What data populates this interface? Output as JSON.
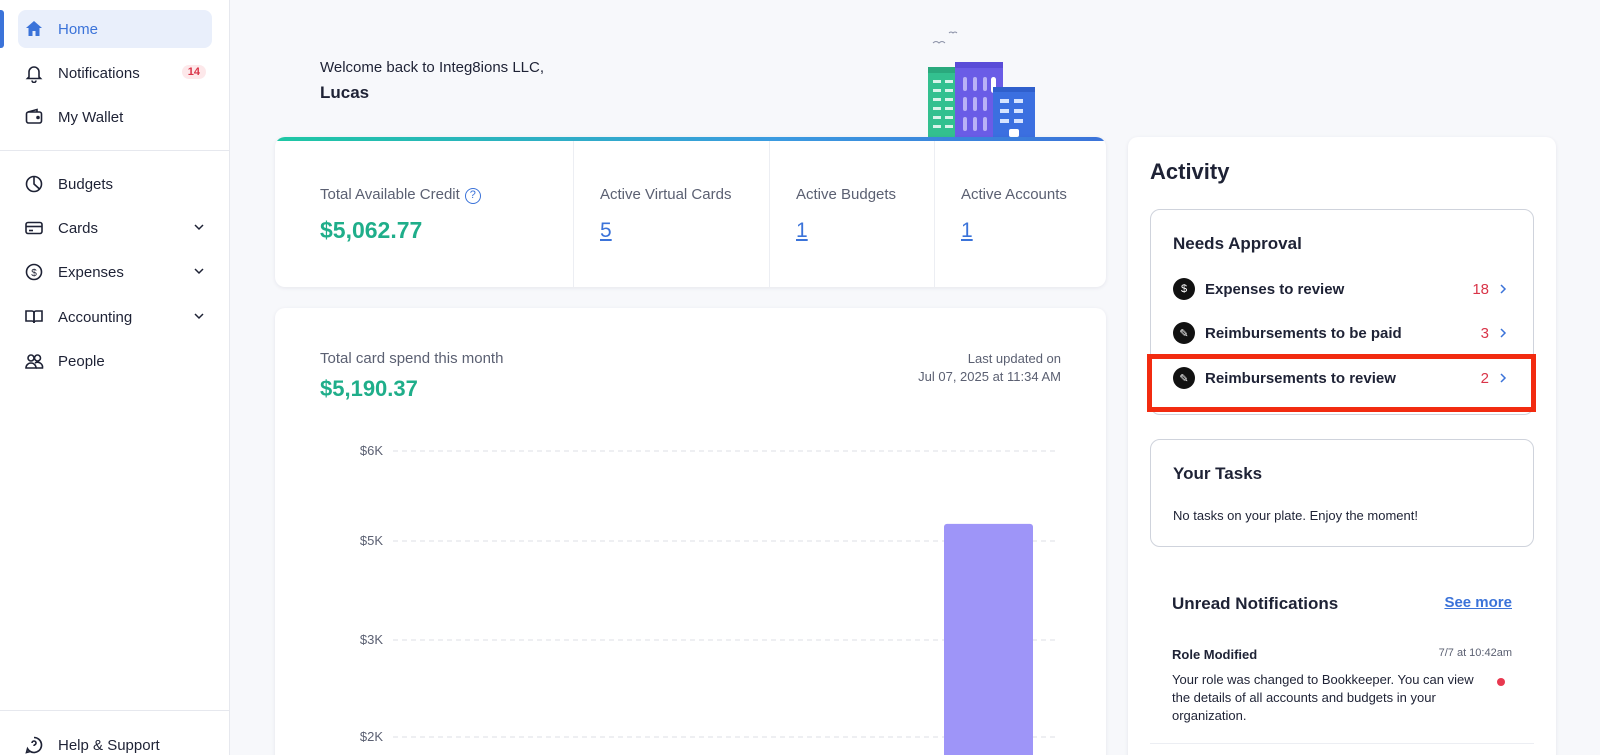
{
  "sidebar": {
    "items": [
      {
        "label": "Home",
        "icon": "home-icon",
        "active": true
      },
      {
        "label": "Notifications",
        "icon": "bell-icon",
        "badge": "14"
      },
      {
        "label": "My Wallet",
        "icon": "wallet-icon"
      },
      {
        "label": "Budgets",
        "icon": "pie-chart-icon"
      },
      {
        "label": "Cards",
        "icon": "credit-card-icon",
        "expandable": true
      },
      {
        "label": "Expenses",
        "icon": "dollar-circle-icon",
        "expandable": true
      },
      {
        "label": "Accounting",
        "icon": "book-icon",
        "expandable": true
      },
      {
        "label": "People",
        "icon": "people-icon"
      }
    ],
    "footer": {
      "label": "Help & Support",
      "icon": "help-icon"
    }
  },
  "welcome": {
    "line": "Welcome back to Integ8ions LLC,",
    "name": "Lucas"
  },
  "stats": {
    "credit_label": "Total Available Credit",
    "credit_value": "$5,062.77",
    "virtual_cards_label": "Active Virtual Cards",
    "virtual_cards_value": "5",
    "budgets_label": "Active Budgets",
    "budgets_value": "1",
    "accounts_label": "Active Accounts",
    "accounts_value": "1"
  },
  "spend": {
    "label": "Total card spend this month",
    "value": "$5,190.37",
    "updated_line1": "Last updated on",
    "updated_line2": "Jul 07, 2025 at 11:34 AM"
  },
  "chart_data": {
    "type": "bar",
    "y_tick_labels": [
      "$6K",
      "$5K",
      "$3K",
      "$2K"
    ],
    "values": [
      5190.37
    ],
    "bar_color": "#9e95f8",
    "grid": true
  },
  "activity": {
    "title": "Activity",
    "needs_approval": {
      "title": "Needs Approval",
      "rows": [
        {
          "label": "Expenses to review",
          "count": "18",
          "icon": "dollar-circle-icon"
        },
        {
          "label": "Reimbursements to be paid",
          "count": "3",
          "icon": "pencil-icon"
        },
        {
          "label": "Reimbursements to review",
          "count": "2",
          "icon": "pencil-icon"
        }
      ]
    },
    "tasks": {
      "title": "Your Tasks",
      "empty_text": "No tasks on your plate. Enjoy the moment!"
    },
    "unread": {
      "title": "Unread Notifications",
      "see_more": "See more",
      "items": [
        {
          "title": "Role Modified",
          "time": "7/7 at 10:42am",
          "body": "Your role was changed to Bookkeeper. You can view the details of all accounts and budgets in your organization."
        }
      ]
    }
  },
  "colors": {
    "accent": "#3b73d9",
    "money": "#1fae8a",
    "alert": "#d93448",
    "highlight": "#f22b10"
  }
}
